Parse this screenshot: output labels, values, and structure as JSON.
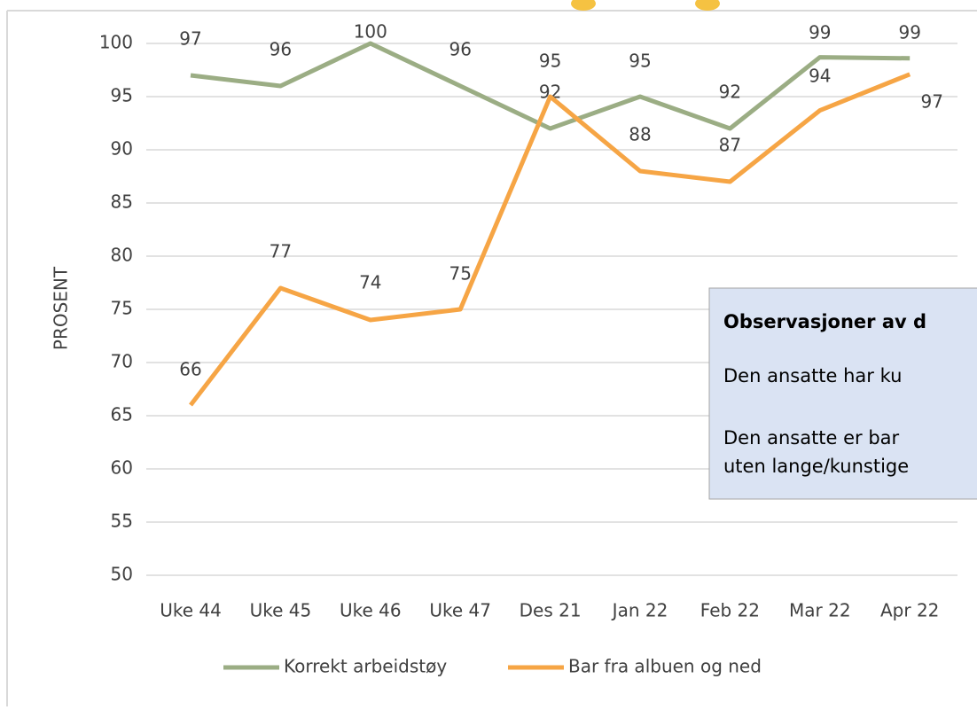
{
  "chart_data": {
    "type": "line",
    "y_label": "PROSENT",
    "categories": [
      "Uke 44",
      "Uke 45",
      "Uke 46",
      "Uke 47",
      "Des 21",
      "Jan 22",
      "Feb 22",
      "Mar 22",
      "Apr 22"
    ],
    "series": [
      {
        "name": "Korrekt arbeidstøy",
        "color": "#9bad84",
        "values": [
          97,
          96,
          100,
          96,
          92,
          95,
          92,
          98.7,
          98.6
        ],
        "value_labels": [
          "97",
          "96",
          "100",
          "96",
          "92",
          "95",
          "92",
          "99",
          "99"
        ]
      },
      {
        "name": "Bar fra albuen og ned",
        "color": "#f6a545",
        "values": [
          66,
          77,
          74,
          75,
          95,
          88,
          87,
          93.7,
          97.1
        ],
        "value_labels": [
          "66",
          "77",
          "74",
          "75",
          "95",
          "88",
          "87",
          "94",
          "97"
        ]
      }
    ],
    "ylim": [
      50,
      100
    ],
    "yticks": [
      50,
      55,
      60,
      65,
      70,
      75,
      80,
      85,
      90,
      95,
      100
    ],
    "grid": true,
    "legend": "bottom",
    "text_box": {
      "title": "Observasjoner av d",
      "lines": [
        "Den ansatte har ku",
        "Den ansatte er bar",
        "uten lange/kunstige"
      ]
    }
  }
}
